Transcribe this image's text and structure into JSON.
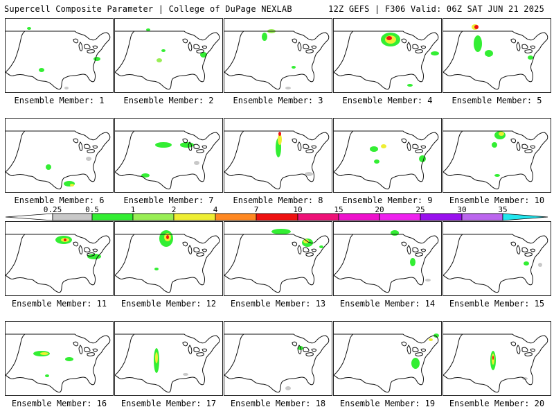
{
  "header": {
    "left": "Supercell Composite Parameter | College of DuPage NEXLAB",
    "right": "12Z GEFS | F306 Valid: 06Z SAT JUN 21 2025"
  },
  "panels": [
    {
      "label": "Ensemble Member: 1"
    },
    {
      "label": "Ensemble Member: 2"
    },
    {
      "label": "Ensemble Member: 3"
    },
    {
      "label": "Ensemble Member: 4"
    },
    {
      "label": "Ensemble Member: 5"
    },
    {
      "label": "Ensemble Member: 6"
    },
    {
      "label": "Ensemble Member: 7"
    },
    {
      "label": "Ensemble Member: 8"
    },
    {
      "label": "Ensemble Member: 9"
    },
    {
      "label": "Ensemble Member: 10"
    },
    {
      "label": "Ensemble Member: 11"
    },
    {
      "label": "Ensemble Member: 12"
    },
    {
      "label": "Ensemble Member: 13"
    },
    {
      "label": "Ensemble Member: 14"
    },
    {
      "label": "Ensemble Member: 15"
    },
    {
      "label": "Ensemble Member: 16"
    },
    {
      "label": "Ensemble Member: 17"
    },
    {
      "label": "Ensemble Member: 18"
    },
    {
      "label": "Ensemble Member: 19"
    },
    {
      "label": "Ensemble Member: 20"
    }
  ],
  "legend": {
    "ticks": [
      "0.25",
      "0.5",
      "1",
      "2",
      "4",
      "7",
      "10",
      "15",
      "20",
      "25",
      "30",
      "35"
    ],
    "colors": [
      "#c8c8c8",
      "#33ee33",
      "#99ee55",
      "#eeee33",
      "#ff8822",
      "#ee1111",
      "#ee1177",
      "#ee11cc",
      "#ee22ee",
      "#9911ee",
      "#bb66ee",
      "#22e6ee"
    ]
  }
}
